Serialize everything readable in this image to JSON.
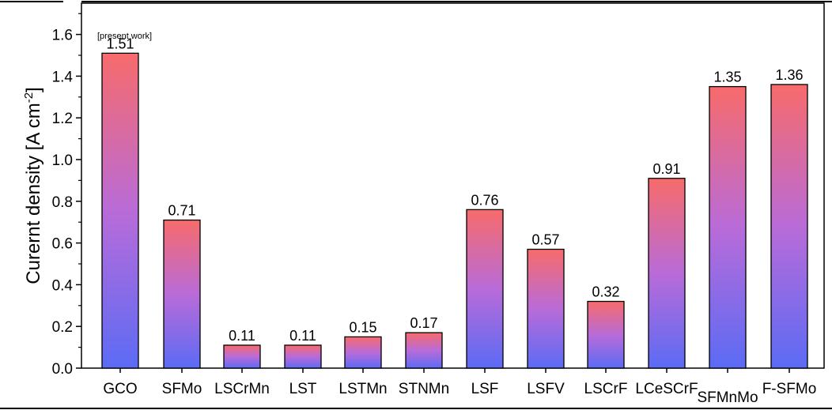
{
  "chart_data": {
    "type": "bar",
    "categories": [
      "GCO",
      "SFMo",
      "LSCrMn",
      "LST",
      "LSTMn",
      "STNMn",
      "LSF",
      "LSFV",
      "LSCrF",
      "LCeSCrF",
      "SFMnMo",
      "F-SFMo"
    ],
    "values": [
      1.51,
      0.71,
      0.11,
      0.11,
      0.15,
      0.17,
      0.76,
      0.57,
      0.32,
      0.91,
      1.35,
      1.36
    ],
    "value_labels": [
      "1.51",
      "0.71",
      "0.11",
      "0.11",
      "0.15",
      "0.17",
      "0.76",
      "0.57",
      "0.32",
      "0.91",
      "1.35",
      "1.36"
    ],
    "title": "",
    "xlabel": "",
    "ylabel": "Curernt density [A cm",
    "ylabel_superscript": "-2",
    "ylabel_suffix": "]",
    "ylim": [
      0,
      1.75
    ],
    "yticks": [
      "0.0",
      "0.2",
      "0.4",
      "0.6",
      "0.8",
      "1.0",
      "1.2",
      "1.4",
      "1.6"
    ],
    "annotation": "[present work]",
    "colors": {
      "bar_top": "#f76b6b",
      "bar_bottom": "#5b6bf5",
      "axis": "#000000"
    },
    "grid": false,
    "legend": "none"
  }
}
